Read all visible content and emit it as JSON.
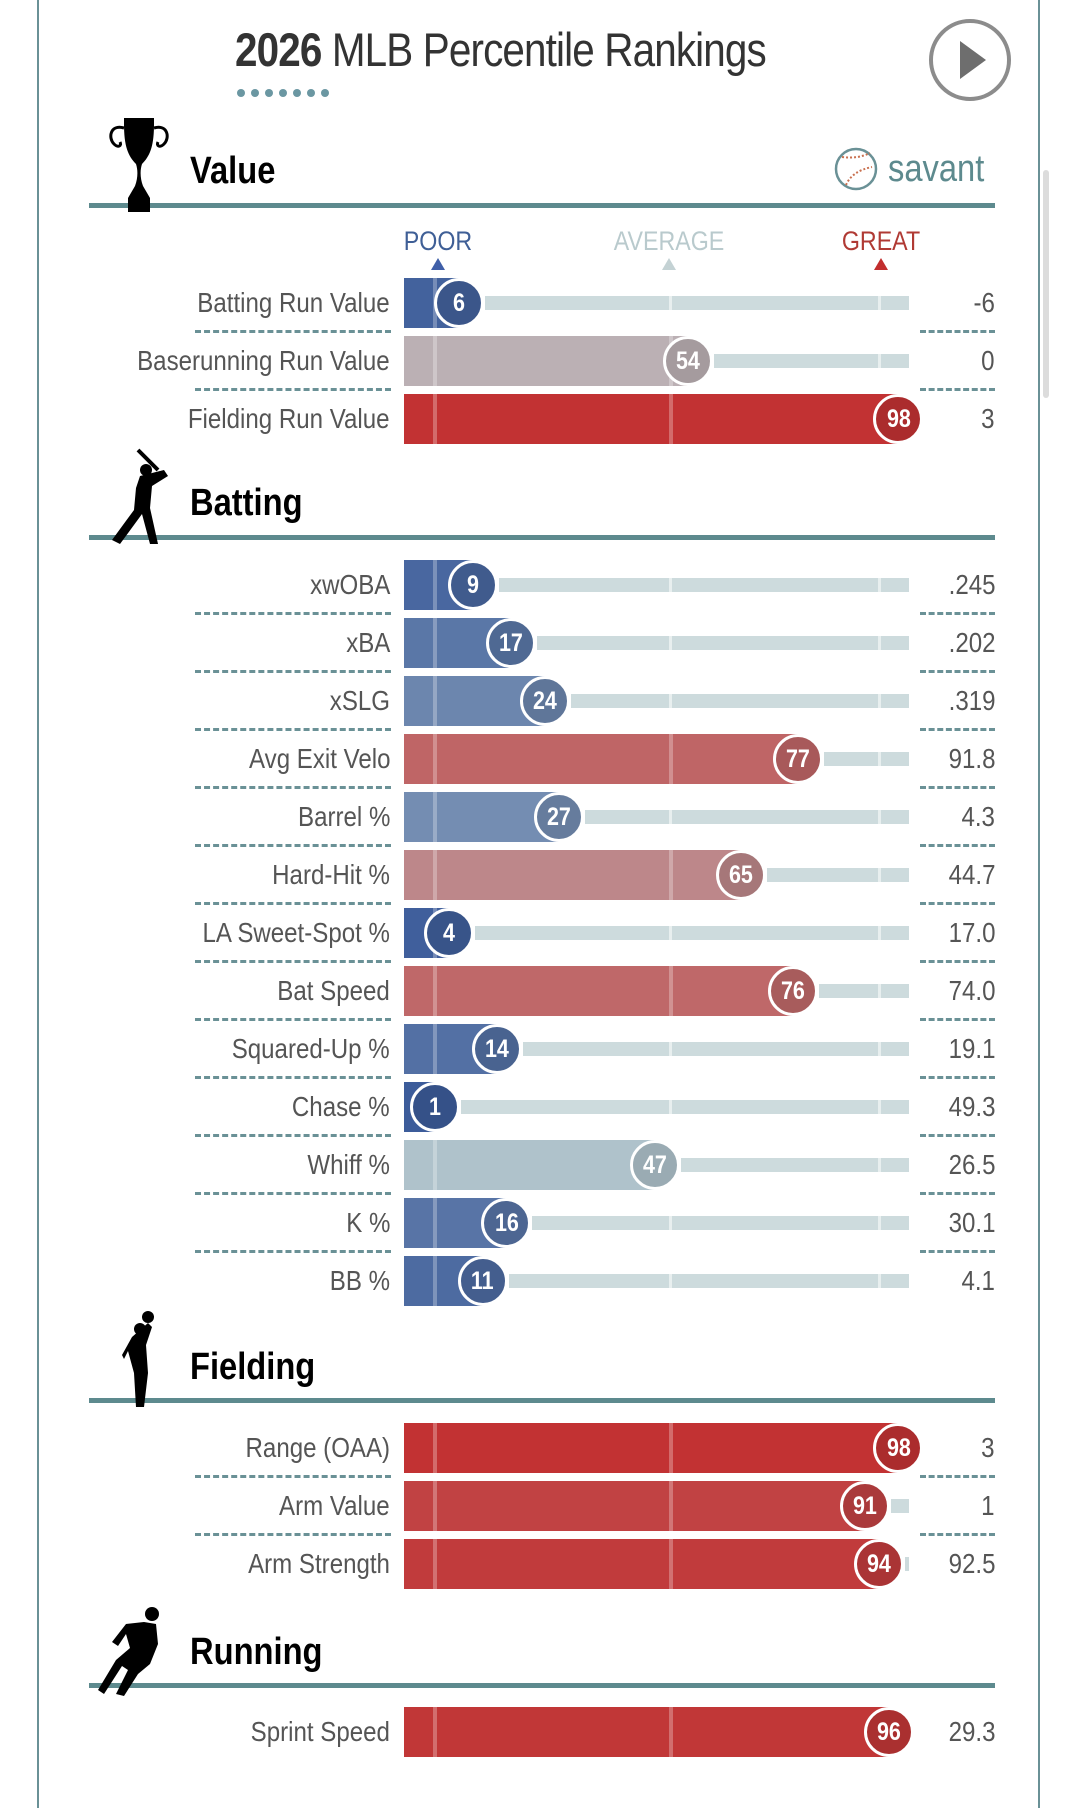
{
  "header": {
    "title_year": "2026",
    "title_rest": " MLB Percentile Rankings",
    "play_button": "play-icon",
    "brand": "savant"
  },
  "scale": {
    "poor": "POOR",
    "average": "AVERAGE",
    "great": "GREAT",
    "colors": {
      "poor": "#3b5b9a",
      "average": "#b9cbcf",
      "great": "#c22e2e"
    }
  },
  "sections": [
    {
      "id": "value",
      "title": "Value",
      "icon": "trophy-icon",
      "rows": [
        {
          "label": "Batting Run Value",
          "percentile": 6,
          "value": "-6"
        },
        {
          "label": "Baserunning Run Value",
          "percentile": 54,
          "value": "0"
        },
        {
          "label": "Fielding Run Value",
          "percentile": 98,
          "value": "3"
        }
      ]
    },
    {
      "id": "batting",
      "title": "Batting",
      "icon": "batter-icon",
      "rows": [
        {
          "label": "xwOBA",
          "percentile": 9,
          "value": ".245"
        },
        {
          "label": "xBA",
          "percentile": 17,
          "value": ".202"
        },
        {
          "label": "xSLG",
          "percentile": 24,
          "value": ".319"
        },
        {
          "label": "Avg Exit Velo",
          "percentile": 77,
          "value": "91.8"
        },
        {
          "label": "Barrel %",
          "percentile": 27,
          "value": "4.3"
        },
        {
          "label": "Hard-Hit %",
          "percentile": 65,
          "value": "44.7"
        },
        {
          "label": "LA Sweet-Spot %",
          "percentile": 4,
          "value": "17.0"
        },
        {
          "label": "Bat Speed",
          "percentile": 76,
          "value": "74.0"
        },
        {
          "label": "Squared-Up %",
          "percentile": 14,
          "value": "19.1"
        },
        {
          "label": "Chase %",
          "percentile": 1,
          "value": "49.3"
        },
        {
          "label": "Whiff %",
          "percentile": 47,
          "value": "26.5"
        },
        {
          "label": "K %",
          "percentile": 16,
          "value": "30.1"
        },
        {
          "label": "BB %",
          "percentile": 11,
          "value": "4.1"
        }
      ]
    },
    {
      "id": "fielding",
      "title": "Fielding",
      "icon": "fielder-icon",
      "rows": [
        {
          "label": "Range (OAA)",
          "percentile": 98,
          "value": "3"
        },
        {
          "label": "Arm Value",
          "percentile": 91,
          "value": "1"
        },
        {
          "label": "Arm Strength",
          "percentile": 94,
          "value": "92.5"
        }
      ]
    },
    {
      "id": "running",
      "title": "Running",
      "icon": "runner-icon",
      "rows": [
        {
          "label": "Sprint Speed",
          "percentile": 96,
          "value": "29.3"
        }
      ]
    }
  ],
  "chart_data": {
    "type": "bar",
    "title": "2026 MLB Percentile Rankings",
    "xlim": [
      0,
      100
    ],
    "xlabel": "Percentile",
    "scale_labels": [
      "POOR",
      "AVERAGE",
      "GREAT"
    ],
    "categories": [
      "Batting Run Value",
      "Baserunning Run Value",
      "Fielding Run Value",
      "xwOBA",
      "xBA",
      "xSLG",
      "Avg Exit Velo",
      "Barrel %",
      "Hard-Hit %",
      "LA Sweet-Spot %",
      "Bat Speed",
      "Squared-Up %",
      "Chase %",
      "Whiff %",
      "K %",
      "BB %",
      "Range (OAA)",
      "Arm Value",
      "Arm Strength",
      "Sprint Speed"
    ],
    "values": [
      6,
      54,
      98,
      9,
      17,
      24,
      77,
      27,
      65,
      4,
      76,
      14,
      1,
      47,
      16,
      11,
      98,
      91,
      94,
      96
    ],
    "raw_values": [
      "-6",
      "0",
      "3",
      ".245",
      ".202",
      ".319",
      "91.8",
      "4.3",
      "44.7",
      "17.0",
      "74.0",
      "19.1",
      "49.3",
      "26.5",
      "30.1",
      "4.1",
      "3",
      "1",
      "92.5",
      "29.3"
    ]
  }
}
